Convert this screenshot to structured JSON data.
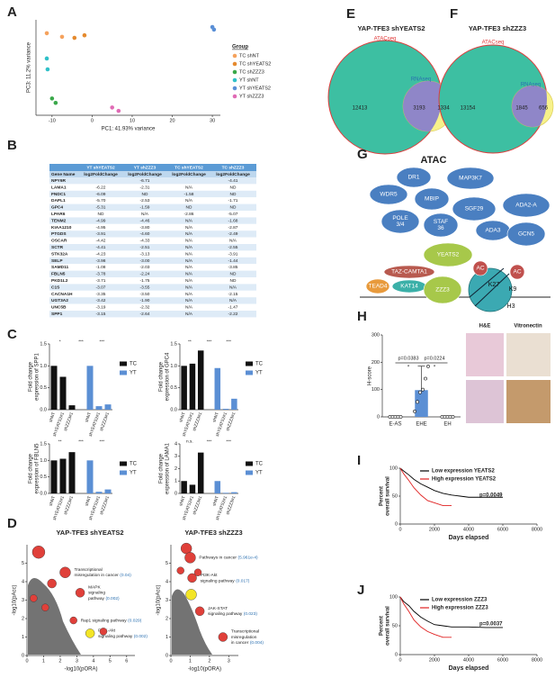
{
  "panel_labels": [
    "A",
    "B",
    "C",
    "D",
    "E",
    "F",
    "G",
    "H",
    "I",
    "J"
  ],
  "table": {
    "groups": [
      "YT shYEATS2",
      "YT shZZZ3",
      "TC shYEATS2",
      "TC shZZZ3"
    ],
    "columns": [
      "Gene Name",
      "log2FoldChange",
      "log2FoldChange",
      "log2FoldChange",
      "log2FoldChange"
    ],
    "rows": [
      [
        "NPY6R",
        null,
        "-6.71",
        null,
        "-4.41"
      ],
      [
        "LAMA1",
        "-6.22",
        "-2.31",
        "N/A",
        "ND"
      ],
      [
        "FNDC1",
        "-6.09",
        "ND",
        "-1.58",
        "ND"
      ],
      [
        "DAPL1",
        "-5.70",
        "-2.53",
        "N/A",
        "-1.71"
      ],
      [
        "GPC4",
        "-5.31",
        "-1.59",
        "ND",
        "ND"
      ],
      [
        "LPAR6",
        "ND",
        "N/A",
        "-2.86",
        "-5.07"
      ],
      [
        "TENM2",
        "-4.99",
        "-4.46",
        "N/A",
        "-1.68"
      ],
      [
        "KIAA1210",
        "-4.95",
        "-3.80",
        "N/A",
        "-2.87"
      ],
      [
        "PTGDS",
        "-3.91",
        "-4.60",
        "N/A",
        "-2.49"
      ],
      [
        "OSCAR",
        "-4.42",
        "-4.33",
        "N/A",
        "N/A"
      ],
      [
        "SCTR",
        "-4.41",
        "-2.51",
        "N/A",
        "-2.55"
      ],
      [
        "STK32A",
        "-4.23",
        "-3.13",
        "N/A",
        "-3.91"
      ],
      [
        "SELP",
        "-3.98",
        "-3.00",
        "N/A",
        "-1.44"
      ],
      [
        "SAMD11",
        "-1.08",
        "-2.03",
        "N/A",
        "-3.85"
      ],
      [
        "FBLN5",
        "-3.78",
        "-2.24",
        "N/A",
        "ND"
      ],
      [
        "PKD1L2",
        "-3.71",
        "-1.75",
        "N/A",
        "ND"
      ],
      [
        "C1S",
        "-3.07",
        "-3.55",
        "N/A",
        "N/A"
      ],
      [
        "CACNA1H",
        "-3.35",
        "-3.50",
        "N/A",
        "-2.15"
      ],
      [
        "UGT3A2",
        "-3.42",
        "-1.90",
        "N/A",
        "N/A"
      ],
      [
        "UNC5B",
        "-3.19",
        "-2.32",
        "N/A",
        "-1.47"
      ],
      [
        "SPP1",
        "-3.15",
        "-2.64",
        "N/A",
        "-2.22"
      ]
    ]
  },
  "venn": [
    {
      "title": "YAP-TFE3 shYEATS2",
      "big": "ATACseq",
      "small": "RNAseq",
      "only_big": 12413,
      "both": 3193,
      "only_small": 1334
    },
    {
      "title": "YAP-TFE3 shZZZ3",
      "big": "ATACseq",
      "small": "RNAseq",
      "only_big": 13154,
      "both": 1845,
      "only_small": 656
    }
  ],
  "complex": {
    "title": "ATAC",
    "nodes": [
      [
        "DR1"
      ],
      [
        "MAP3K7"
      ],
      [
        "WDR5"
      ],
      [
        "MBIP"
      ],
      [
        "SGF29"
      ],
      [
        "POLE",
        "3/4"
      ],
      [
        "STAF",
        "36"
      ],
      [
        "ADA2-A"
      ],
      [
        "ADA3"
      ],
      [
        "GCN5"
      ],
      [
        "YEATS2"
      ],
      [
        "TAZ-CAMTA1"
      ],
      [
        "TEAD4"
      ],
      [
        "KAT14"
      ],
      [
        "ZZZ3"
      ],
      [
        "AC"
      ],
      [
        "AC"
      ],
      [
        "K27"
      ],
      [
        "K9"
      ],
      [
        "H3"
      ]
    ]
  },
  "histology": [
    "H&E",
    "Vitronectin"
  ],
  "chart_data": [
    {
      "type": "scatter",
      "xlabel": "PC1: 41.93% variance",
      "ylabel": "PC3: 11.2% variance",
      "xlim": [
        -14,
        32
      ],
      "ylim": [
        -22,
        15
      ],
      "xticks": [
        -10,
        0,
        10,
        20,
        30
      ],
      "legend_title": "Group",
      "series": [
        {
          "name": "TC shNT",
          "color": "#f5a25d",
          "x": [
            -11.3,
            -7.5
          ],
          "y": [
            9.8,
            8.4
          ]
        },
        {
          "name": "TC shYEATS2",
          "color": "#e58a2e",
          "x": [
            -4.4,
            -1.9
          ],
          "y": [
            8.0,
            9.0
          ]
        },
        {
          "name": "TC shZZZ3",
          "color": "#3aa84a",
          "x": [
            -10,
            -9.1
          ],
          "y": [
            -15.5,
            -17.2
          ]
        },
        {
          "name": "YT shNT",
          "color": "#2fc0c8",
          "x": [
            -11.3,
            -11.1
          ],
          "y": [
            0,
            -4.2
          ]
        },
        {
          "name": "YT shYEATS2",
          "color": "#5a8fd6",
          "x": [
            30,
            30.4
          ],
          "y": [
            12.2,
            11.2
          ]
        },
        {
          "name": "YT shZZZ3",
          "color": "#e06bb5",
          "x": [
            5,
            6.6
          ],
          "y": [
            -19,
            -20.3
          ]
        }
      ]
    },
    {
      "type": "bar",
      "ylabel": [
        "Fold change",
        "expression of SPP1"
      ],
      "ylim": [
        0,
        1.5
      ],
      "yticks": [
        {
          "value": 0,
          "label": "0.0"
        },
        0.5,
        {
          "value": 1,
          "label": "1.0"
        },
        1.5
      ],
      "categories": [
        "shNT",
        "shYEATS2#1",
        "shZZZ3#1"
      ],
      "series": [
        {
          "name": "TC",
          "color": "#111111",
          "values": [
            1,
            0.75,
            0.1
          ]
        },
        {
          "name": "YT",
          "color": "#5b8fd4",
          "values": [
            1,
            0.08,
            0.12
          ]
        }
      ],
      "annotations": [
        "*",
        "***",
        "***"
      ]
    },
    {
      "type": "bar",
      "ylabel": [
        "Fold change",
        "expression of GPC4"
      ],
      "ylim": [
        0,
        1.5
      ],
      "yticks": [
        {
          "value": 0,
          "label": "0.0"
        },
        0.5,
        {
          "value": 1,
          "label": "1.0"
        },
        1.5
      ],
      "categories": [
        "shNT",
        "shYEATS2#1",
        "shZZZ3#1"
      ],
      "series": [
        {
          "name": "TC",
          "color": "#111111",
          "values": [
            1,
            1.05,
            1.35
          ]
        },
        {
          "name": "YT",
          "color": "#5b8fd4",
          "values": [
            0.95,
            0.02,
            0.25
          ]
        }
      ],
      "annotations": [
        "**",
        "***",
        "***"
      ]
    },
    {
      "type": "bar",
      "ylabel": [
        "Fold change",
        "expression of FBLN5"
      ],
      "ylim": [
        0,
        1.5
      ],
      "yticks": [
        {
          "value": 0,
          "label": "0.0"
        },
        0.5,
        {
          "value": 1,
          "label": "1.0"
        },
        1.5
      ],
      "categories": [
        "shNT",
        "shYEATS2#1",
        "shZZZ3#1"
      ],
      "series": [
        {
          "name": "TC",
          "color": "#111111",
          "values": [
            1,
            1.05,
            1.25
          ]
        },
        {
          "name": "YT",
          "color": "#5b8fd4",
          "values": [
            1,
            0.05,
            0.12
          ]
        }
      ],
      "annotations": [
        "**",
        "***",
        "***"
      ]
    },
    {
      "type": "bar",
      "ylabel": [
        "Fold change",
        "expression of LAMA1"
      ],
      "ylim": [
        0,
        4
      ],
      "yticks": [
        0,
        1,
        2,
        3,
        4
      ],
      "categories": [
        "shNT",
        "shYEATS2#1",
        "shZZZ3#1"
      ],
      "series": [
        {
          "name": "TC",
          "color": "#111111",
          "values": [
            1,
            0.7,
            3.3
          ]
        },
        {
          "name": "YT",
          "color": "#5b8fd4",
          "values": [
            1,
            0.05,
            0.1
          ]
        }
      ],
      "annotations": [
        "n.s.",
        "***",
        "***"
      ]
    },
    {
      "type": "bubble",
      "title": "YAP-TFE3 shYEATS2",
      "xlabel": "-log10(pORA)",
      "ylabel": "-log10(pAcc)",
      "xlim": [
        0,
        6.5
      ],
      "ylim": [
        0,
        6
      ],
      "xticks": [
        0,
        1,
        2,
        3,
        4,
        5,
        6
      ],
      "yticks": [
        0,
        1,
        2,
        3,
        4,
        5
      ],
      "x": [
        0.7,
        2.3,
        3.2,
        2.8,
        3.8,
        1.5,
        0.4,
        4.6,
        1.1
      ],
      "y": [
        5.6,
        4.5,
        3.4,
        1.9,
        1.2,
        3.9,
        3.1,
        1.3,
        2.6
      ],
      "sizes": [
        7,
        6,
        5,
        4,
        5,
        5,
        4,
        4,
        4
      ],
      "colors": [
        "#e0403a",
        "#e0403a",
        "#e0403a",
        "#e0403a",
        "#f3e526",
        "#e0403a",
        "#e0403a",
        "#e0403a",
        "#e0403a"
      ],
      "labels": [
        null,
        [
          "Transcriptional",
          "misregulation in cancer"
        ],
        [
          "MAPK",
          "signaling",
          "pathway"
        ],
        [
          "Rap1 signaling pathway"
        ],
        [
          "PI3K-Akt",
          "signaling pathway"
        ],
        null,
        null,
        null,
        null
      ],
      "pvalues": [
        null,
        "(0.04)",
        "(0.002)",
        "(0.029)",
        "(0.002)",
        null,
        null,
        null,
        null
      ]
    },
    {
      "type": "bubble",
      "title": "YAP-TFE3 shZZZ3",
      "xlabel": "-log10(pORA)",
      "ylabel": "-log10(pAcc)",
      "xlim": [
        0,
        3.5
      ],
      "ylim": [
        0,
        6
      ],
      "xticks": [
        0,
        1,
        2,
        3
      ],
      "yticks": [
        0,
        1,
        2,
        3,
        4,
        5
      ],
      "x": [
        0.8,
        1.0,
        1.1,
        1.05,
        1.5,
        2.7,
        0.5,
        1.4
      ],
      "y": [
        5.8,
        5.3,
        4.2,
        3.3,
        2.4,
        1.0,
        4.6,
        4.5
      ],
      "sizes": [
        6,
        6,
        5,
        6,
        5,
        5,
        4,
        4
      ],
      "colors": [
        "#e0403a",
        "#e0403a",
        "#e0403a",
        "#f3e526",
        "#e0403a",
        "#e0403a",
        "#e0403a",
        "#e0403a"
      ],
      "labels": [
        null,
        [
          "Pathways in cancer"
        ],
        [
          "PI3K-Akt",
          "signaling pathway"
        ],
        null,
        [
          "JAK-STAT",
          "signaling pathway"
        ],
        [
          "Transcriptional",
          "misregulation",
          "in cancer"
        ],
        null,
        null
      ],
      "pvalues": [
        null,
        "(5.961e-4)",
        "(0.017)",
        null,
        "(0.023)",
        "(0.004)",
        null,
        null
      ]
    },
    {
      "type": "dotbar",
      "ylabel": "H-score",
      "ylim": [
        0,
        300
      ],
      "yticks": [
        0,
        100,
        200,
        300
      ],
      "categories": [
        "E-AS",
        "EHE",
        "EH"
      ],
      "values": [
        0,
        98,
        0
      ],
      "errors": [
        0,
        88,
        0
      ],
      "color": "#5b8fd4",
      "points": [
        [
          0,
          0,
          0,
          0,
          0
        ],
        [
          20,
          55,
          90,
          100,
          140,
          185
        ],
        [
          0,
          0,
          0,
          0,
          0
        ]
      ],
      "annotations": [
        "p=0.0383",
        "p=0.0224"
      ],
      "stars": [
        "*",
        "*"
      ]
    },
    {
      "type": "line",
      "ylabel": [
        "Percent",
        "overall survival"
      ],
      "xlabel": "Days elapsed",
      "xlim": [
        0,
        8000
      ],
      "ylim": [
        0,
        100
      ],
      "xticks": [
        0,
        2000,
        4000,
        6000,
        8000
      ],
      "yticks": [
        0,
        50,
        100
      ],
      "series": [
        {
          "name": "Low expression YEATS2",
          "color": "#000000",
          "x": [
            0,
            200,
            500,
            800,
            1200,
            1600,
            2000,
            2500,
            3000,
            3500,
            4000,
            5000,
            6000
          ],
          "y": [
            100,
            95,
            88,
            80,
            72,
            66,
            60,
            55,
            52,
            50,
            48,
            48,
            48
          ]
        },
        {
          "name": "High expression YEATS2",
          "color": "#e02020",
          "x": [
            0,
            200,
            500,
            800,
            1200,
            1600,
            2000,
            2500,
            3000
          ],
          "y": [
            100,
            90,
            78,
            65,
            52,
            42,
            38,
            33,
            33
          ]
        }
      ],
      "annotation": "p=0.0049"
    },
    {
      "type": "line",
      "ylabel": [
        "Percent",
        "overall survival"
      ],
      "xlabel": "Days elapsed",
      "xlim": [
        0,
        8000
      ],
      "ylim": [
        0,
        100
      ],
      "xticks": [
        0,
        2000,
        4000,
        6000,
        8000
      ],
      "yticks": [
        0,
        50,
        100
      ],
      "series": [
        {
          "name": "Low expression ZZZ3",
          "color": "#000000",
          "x": [
            0,
            200,
            500,
            800,
            1200,
            1600,
            2000,
            2500,
            3000,
            3500,
            4000,
            5000,
            6000
          ],
          "y": [
            100,
            92,
            85,
            75,
            65,
            58,
            52,
            50,
            48,
            48,
            48,
            47,
            47
          ]
        },
        {
          "name": "High expression ZZZ3",
          "color": "#e02020",
          "x": [
            0,
            200,
            500,
            800,
            1200,
            1600,
            2000,
            2500,
            3000
          ],
          "y": [
            100,
            88,
            75,
            60,
            48,
            40,
            35,
            30,
            30
          ]
        }
      ],
      "annotation": "p=0.0037"
    }
  ]
}
